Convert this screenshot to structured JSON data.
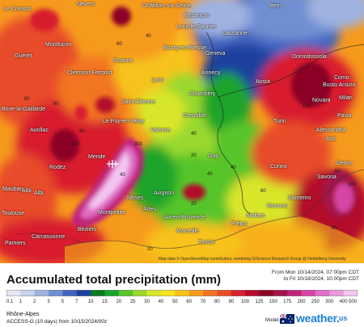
{
  "map": {
    "cities": [
      {
        "name": "Nevers"
      },
      {
        "name": "Châtillon-sur-Seine"
      },
      {
        "name": "Bern"
      },
      {
        "name": "Besançon"
      },
      {
        "name": "Lons-le-Saunier"
      },
      {
        "name": "Montluçon"
      },
      {
        "name": "Guéret"
      },
      {
        "name": "Clermont-Ferrand"
      },
      {
        "name": "Roanne"
      },
      {
        "name": "Bourg-en-Bresse"
      },
      {
        "name": "Geneva"
      },
      {
        "name": "Lausanne"
      },
      {
        "name": "Domodossola"
      },
      {
        "name": "Como"
      },
      {
        "name": "Busto Arsizio"
      },
      {
        "name": "Novara"
      },
      {
        "name": "Milan"
      },
      {
        "name": "Lyon"
      },
      {
        "name": "Annecy"
      },
      {
        "name": "Aosta"
      },
      {
        "name": "Brive-la-Gaillarde"
      },
      {
        "name": "Saint-Étienne"
      },
      {
        "name": "Chambéry"
      },
      {
        "name": "Aurillac"
      },
      {
        "name": "Le Puy-en-Velay"
      },
      {
        "name": "Grenoble"
      },
      {
        "name": "Turin"
      },
      {
        "name": "Alessandria"
      },
      {
        "name": "Pavia"
      },
      {
        "name": "Valence"
      },
      {
        "name": "Asti"
      },
      {
        "name": "Mende"
      },
      {
        "name": "Gap"
      },
      {
        "name": "Rodez"
      },
      {
        "name": "Cuneo"
      },
      {
        "name": "Genoa"
      },
      {
        "name": "Savona"
      },
      {
        "name": "Albi"
      },
      {
        "name": "Avignon"
      },
      {
        "name": "Nîmes"
      },
      {
        "name": "Sanremo"
      },
      {
        "name": "Monaco"
      },
      {
        "name": "Toulouse"
      },
      {
        "name": "Montpellier"
      },
      {
        "name": "Aix-en-Provence"
      },
      {
        "name": "Antibes"
      },
      {
        "name": "Fréjus"
      },
      {
        "name": "Carcassonne"
      },
      {
        "name": "Béziers"
      },
      {
        "name": "Arles"
      },
      {
        "name": "Marseille"
      },
      {
        "name": "Toulon"
      },
      {
        "name": "Pamiers"
      },
      {
        "name": "Albi"
      },
      {
        "name": "Mauban"
      },
      {
        "name": "Le Creusot"
      }
    ],
    "contour_labels": [
      "40",
      "40",
      "40",
      "20",
      "20",
      "60",
      "60",
      "80",
      "80",
      "100",
      "100",
      "300",
      "40",
      "60",
      "60",
      "60",
      "100",
      "40",
      "20"
    ],
    "attribution": "Map data © OpenStreetMap contributors, rendering GIScience Research Group @ Heidelberg University"
  },
  "legend": {
    "title": "Accumulated total precipitation (mm)",
    "date_from": "From Mon 10/14/2024, 07:00pm CDT",
    "date_to": "to Fri 10/18/2024, 10:00pm CDT",
    "ticks": [
      "0.1",
      "1",
      "2",
      "3",
      "5",
      "7",
      "10",
      "15",
      "20",
      "25",
      "30",
      "40",
      "50",
      "60",
      "70",
      "80",
      "90",
      "100",
      "125",
      "150",
      "175",
      "200",
      "250",
      "300",
      "400",
      "500"
    ],
    "colors": [
      "#e6e6f5",
      "#c8d2ee",
      "#9fb2e0",
      "#6f8fd2",
      "#3f63c0",
      "#1d3f9e",
      "#0a7a1f",
      "#1aa52b",
      "#57c52c",
      "#9ad82d",
      "#d8e62a",
      "#f6e41c",
      "#f7c21a",
      "#f69a1d",
      "#f27423",
      "#e84c29",
      "#d81e2f",
      "#b30b2c",
      "#8c0425",
      "#a4124a",
      "#c0247a",
      "#d544a4",
      "#e06ec6",
      "#e99ade",
      "#f2c6ef"
    ],
    "region": "Rhône-Alpes",
    "model_info": "ACCESS-G (10 days) from 10/15/2024/00z",
    "model_label": "Model:",
    "brand": "weather.",
    "brand_suffix": "us"
  }
}
